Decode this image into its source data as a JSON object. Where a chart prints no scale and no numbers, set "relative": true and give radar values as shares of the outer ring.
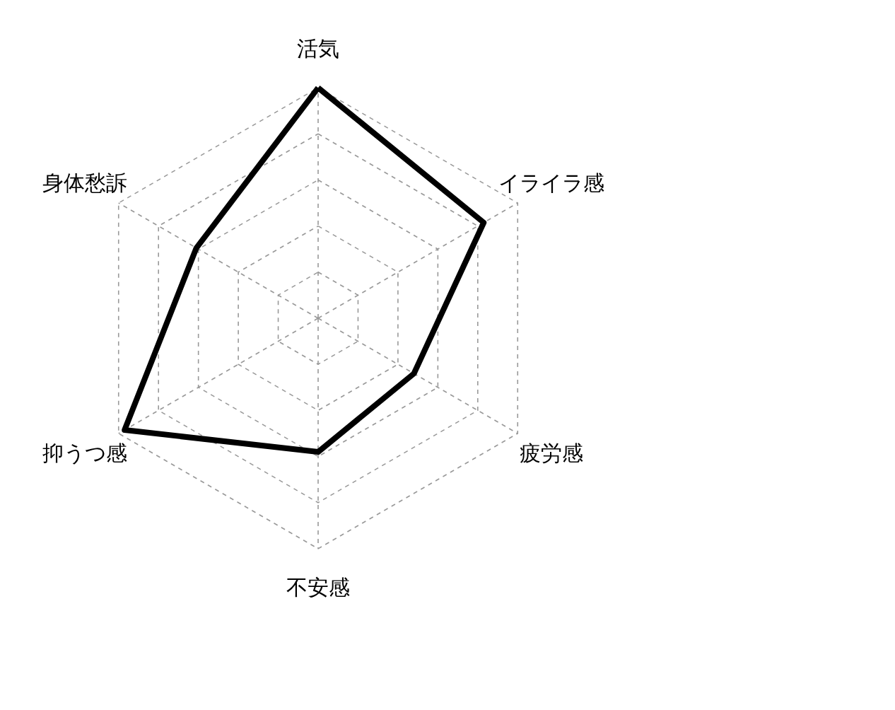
{
  "chart_data": {
    "type": "radar",
    "relative": true,
    "grid": true,
    "marker": "none",
    "line_style": "solid",
    "categories": [
      "活気",
      "イライラ感",
      "疲労感",
      "不安感",
      "抑うつ感",
      "身体愁訴"
    ],
    "series": [
      {
        "color": "#000000",
        "values": [
          1.0,
          0.83,
          0.48,
          0.58,
          0.97,
          0.61
        ]
      }
    ]
  }
}
